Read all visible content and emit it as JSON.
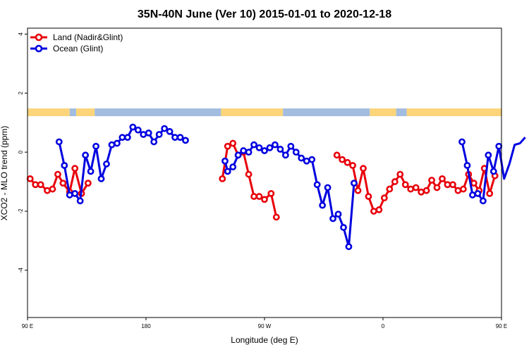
{
  "chart_data": {
    "type": "line",
    "title": "35N-40N June (Ver 10)   2015-01-01 to 2020-12-18",
    "xlabel": "Longitude (deg E)",
    "ylabel": "XCO2 - MLO trend (ppm)",
    "xlim": [
      90,
      450
    ],
    "ylim": [
      -5.6,
      4.2
    ],
    "grid": false,
    "legend_position": "top-left",
    "x_ticks": [
      {
        "value": 90,
        "label": "90 E"
      },
      {
        "value": 180,
        "label": "180"
      },
      {
        "value": 270,
        "label": "90 W"
      },
      {
        "value": 360,
        "label": "0"
      },
      {
        "value": 450,
        "label": "90 E"
      },
      {
        "value": 540,
        "label": "180"
      }
    ],
    "y_ticks": [
      {
        "value": 4,
        "label": "4"
      },
      {
        "value": 2,
        "label": "2"
      },
      {
        "value": 0,
        "label": "0"
      },
      {
        "value": -2,
        "label": "-2"
      },
      {
        "value": -4,
        "label": "-4"
      }
    ],
    "series": [
      {
        "name": "Land (Nadir&Glint)",
        "color": "#e8000b",
        "segments": [
          [
            [
              92,
              -0.9
            ],
            [
              96,
              -1.1
            ],
            [
              100,
              -1.1
            ],
            [
              105,
              -1.3
            ],
            [
              109,
              -1.25
            ],
            [
              113,
              -0.75
            ],
            [
              117,
              -1.05
            ],
            [
              122,
              -1.35
            ],
            [
              126,
              -0.55
            ],
            [
              131,
              -1.4
            ],
            [
              136,
              -1.05
            ]
          ],
          [
            [
              238,
              -0.9
            ],
            [
              242,
              0.2
            ],
            [
              246,
              0.3
            ],
            [
              250,
              -0.1
            ],
            [
              254,
              0.0
            ],
            [
              258,
              -0.75
            ],
            [
              262,
              -1.5
            ],
            [
              266,
              -1.5
            ],
            [
              270,
              -1.6
            ],
            [
              275,
              -1.4
            ],
            [
              279,
              -2.2
            ]
          ],
          [
            [
              325,
              -0.1
            ],
            [
              329,
              -0.25
            ],
            [
              333,
              -0.35
            ],
            [
              337,
              -0.45
            ],
            [
              341,
              -1.3
            ],
            [
              345,
              -0.55
            ],
            [
              349,
              -1.5
            ],
            [
              353,
              -2.0
            ],
            [
              357,
              -1.95
            ],
            [
              361,
              -1.55
            ],
            [
              365,
              -1.25
            ],
            [
              369,
              -1.0
            ],
            [
              373,
              -0.75
            ],
            [
              377,
              -1.1
            ],
            [
              381,
              -1.25
            ],
            [
              385,
              -1.2
            ],
            [
              389,
              -1.35
            ],
            [
              393,
              -1.3
            ],
            [
              397,
              -0.95
            ],
            [
              401,
              -1.2
            ],
            [
              405,
              -0.9
            ],
            [
              409,
              -1.1
            ],
            [
              413,
              -1.1
            ],
            [
              417,
              -1.3
            ],
            [
              421,
              -1.25
            ],
            [
              425,
              -0.75
            ],
            [
              429,
              -1.05
            ],
            [
              433,
              -1.3
            ],
            [
              437,
              -0.55
            ],
            [
              441,
              -1.4
            ],
            [
              445,
              -0.8
            ]
          ]
        ]
      },
      {
        "name": "Ocean (Glint)",
        "color": "#0000e0",
        "segments": [
          [
            [
              114,
              0.35
            ],
            [
              118,
              -0.45
            ],
            [
              122,
              -1.45
            ],
            [
              126,
              -1.4
            ],
            [
              130,
              -1.65
            ],
            [
              134,
              -0.1
            ],
            [
              138,
              -0.65
            ],
            [
              142,
              0.2
            ],
            [
              146,
              -0.9
            ],
            [
              150,
              -0.4
            ],
            [
              154,
              0.25
            ],
            [
              158,
              0.3
            ],
            [
              162,
              0.5
            ],
            [
              166,
              0.5
            ],
            [
              170,
              0.85
            ],
            [
              174,
              0.75
            ],
            [
              178,
              0.6
            ],
            [
              182,
              0.65
            ],
            [
              186,
              0.35
            ],
            [
              190,
              0.6
            ],
            [
              194,
              0.8
            ],
            [
              198,
              0.7
            ],
            [
              202,
              0.5
            ],
            [
              206,
              0.5
            ],
            [
              210,
              0.4
            ]
          ],
          [
            [
              240,
              -0.3
            ],
            [
              242,
              -0.65
            ],
            [
              246,
              -0.5
            ],
            [
              250,
              -0.1
            ],
            [
              254,
              0.05
            ],
            [
              258,
              0.0
            ],
            [
              262,
              0.25
            ],
            [
              266,
              0.15
            ],
            [
              270,
              0.05
            ],
            [
              274,
              0.15
            ],
            [
              278,
              0.25
            ],
            [
              282,
              0.1
            ],
            [
              286,
              -0.1
            ],
            [
              290,
              0.2
            ],
            [
              294,
              0.0
            ],
            [
              298,
              -0.2
            ],
            [
              302,
              -0.3
            ],
            [
              306,
              -0.25
            ],
            [
              310,
              -1.1
            ],
            [
              314,
              -1.8
            ],
            [
              318,
              -1.2
            ],
            [
              322,
              -2.25
            ],
            [
              326,
              -2.1
            ],
            [
              330,
              -2.55
            ],
            [
              334,
              -3.2
            ],
            [
              338,
              -1.05
            ]
          ],
          [
            [
              420,
              0.35
            ],
            [
              424,
              -0.45
            ],
            [
              428,
              -1.45
            ],
            [
              432,
              -1.4
            ],
            [
              436,
              -1.65
            ],
            [
              440,
              -0.1
            ],
            [
              444,
              -0.65
            ],
            [
              448,
              0.2
            ],
            [
              452,
              -0.9
            ],
            [
              456,
              -0.4
            ],
            [
              460,
              0.25
            ],
            [
              464,
              0.3
            ],
            [
              468,
              0.5
            ]
          ]
        ]
      }
    ],
    "land_mask": [
      {
        "from": 90,
        "to": 122,
        "type": "land"
      },
      {
        "from": 122,
        "to": 127,
        "type": "ocean"
      },
      {
        "from": 127,
        "to": 141,
        "type": "land"
      },
      {
        "from": 141,
        "to": 237,
        "type": "ocean"
      },
      {
        "from": 237,
        "to": 284,
        "type": "land"
      },
      {
        "from": 284,
        "to": 350,
        "type": "ocean"
      },
      {
        "from": 350,
        "to": 370,
        "type": "land"
      },
      {
        "from": 370,
        "to": 378,
        "type": "ocean"
      },
      {
        "from": 378,
        "to": 450,
        "type": "land"
      }
    ],
    "mask_colors": {
      "land": "#fcd57a",
      "ocean": "#a3bde0"
    }
  }
}
